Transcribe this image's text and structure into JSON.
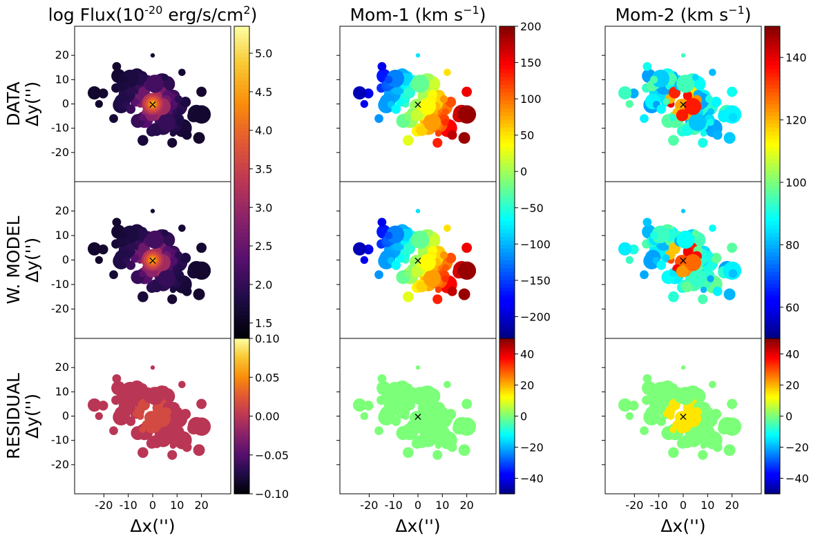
{
  "chart_data": {
    "type": "heatmap",
    "description_grid": "3x3 panel grid of 2D maps",
    "columns": [
      {
        "title": "log Flux(10",
        "title_sup": "-20",
        "title_rest": " erg/s/cm",
        "title_sup2": "2",
        "title_end": ")",
        "colormap": "inferno",
        "colorbars": [
          {
            "range": [
              1.3,
              5.35
            ],
            "ticks": [
              1.5,
              2.0,
              2.5,
              3.0,
              3.5,
              4.0,
              4.5,
              5.0
            ],
            "tick_labels": [
              "1.5",
              "2.0",
              "2.5",
              "3.0",
              "3.5",
              "4.0",
              "4.5",
              "5.0"
            ],
            "rows": [
              0,
              1
            ]
          },
          {
            "range": [
              -0.1,
              0.1
            ],
            "ticks": [
              -0.1,
              -0.05,
              0.0,
              0.05,
              0.1
            ],
            "tick_labels": [
              "−0.10",
              "−0.05",
              "0.00",
              "0.05",
              "0.10"
            ],
            "rows": [
              2
            ]
          }
        ]
      },
      {
        "title": "Mom-1 (km s",
        "title_sup": "−1",
        "title_rest": ")",
        "title_sup2": "",
        "title_end": "",
        "colormap": "jet",
        "colorbars": [
          {
            "range": [
              -230,
              200
            ],
            "ticks": [
              -200,
              -150,
              -100,
              -50,
              0,
              50,
              100,
              150,
              200
            ],
            "tick_labels": [
              "−200",
              "−150",
              "−100",
              "−50",
              "0",
              "50",
              "100",
              "150",
              "200"
            ],
            "rows": [
              0,
              1
            ]
          },
          {
            "range": [
              -50,
              50
            ],
            "ticks": [
              -40,
              -20,
              0,
              20,
              40
            ],
            "tick_labels": [
              "−40",
              "−20",
              "0",
              "20",
              "40"
            ],
            "rows": [
              2
            ]
          }
        ]
      },
      {
        "title": "Mom-2 (km s",
        "title_sup": "−1",
        "title_rest": ")",
        "title_sup2": "",
        "title_end": "",
        "colormap": "jet",
        "colorbars": [
          {
            "range": [
              50,
              150
            ],
            "ticks": [
              60,
              80,
              100,
              120,
              140
            ],
            "tick_labels": [
              "60",
              "80",
              "100",
              "120",
              "140"
            ],
            "rows": [
              0,
              1
            ]
          },
          {
            "range": [
              -50,
              50
            ],
            "ticks": [
              -40,
              -20,
              0,
              20,
              40
            ],
            "tick_labels": [
              "−40",
              "−20",
              "0",
              "20",
              "40"
            ],
            "rows": [
              2
            ]
          }
        ]
      }
    ],
    "rows": [
      {
        "label": "DATA",
        "ylabel": "Δy('')"
      },
      {
        "label": "W. MODEL",
        "ylabel": "Δy('')"
      },
      {
        "label": "RESIDUAL",
        "ylabel": "Δy('')"
      }
    ],
    "xlabel": "Δx('')",
    "x_range": [
      -32,
      32
    ],
    "y_range": [
      -32,
      32
    ],
    "x_ticks": [
      -20,
      -10,
      0,
      10,
      20
    ],
    "x_tick_labels": [
      "-20",
      "-10",
      "0",
      "10",
      "20"
    ],
    "y_ticks": [
      20,
      10,
      0,
      -10,
      -20
    ],
    "y_tick_labels": [
      "20",
      "10",
      "0",
      "-10",
      "-20"
    ],
    "center_marker": {
      "symbol": "×",
      "x": 0,
      "y": 0
    },
    "galaxy": {
      "position_angle_deg": -25,
      "major_extent": 24,
      "minor_extent": 9
    }
  }
}
